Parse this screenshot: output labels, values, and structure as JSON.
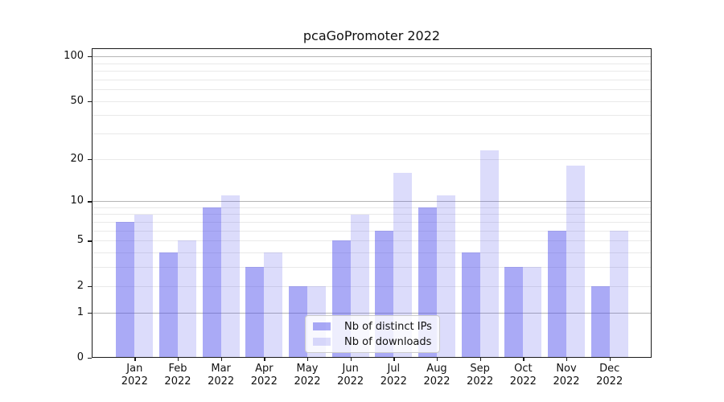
{
  "title": "pcaGoPromoter 2022",
  "chart_data": {
    "type": "bar",
    "title": "pcaGoPromoter 2022",
    "categories": [
      {
        "month": "Jan",
        "year": "2022"
      },
      {
        "month": "Feb",
        "year": "2022"
      },
      {
        "month": "Mar",
        "year": "2022"
      },
      {
        "month": "Apr",
        "year": "2022"
      },
      {
        "month": "May",
        "year": "2022"
      },
      {
        "month": "Jun",
        "year": "2022"
      },
      {
        "month": "Jul",
        "year": "2022"
      },
      {
        "month": "Aug",
        "year": "2022"
      },
      {
        "month": "Sep",
        "year": "2022"
      },
      {
        "month": "Oct",
        "year": "2022"
      },
      {
        "month": "Nov",
        "year": "2022"
      },
      {
        "month": "Dec",
        "year": "2022"
      }
    ],
    "series": [
      {
        "name": "Nb of distinct IPs",
        "color": "#aaaaf5",
        "color_rgba": "rgba(70,70,235,0.46)",
        "values": [
          7,
          4,
          9,
          3,
          2,
          5,
          6,
          9,
          4,
          3,
          6,
          2
        ]
      },
      {
        "name": "Nb of downloads",
        "color": "#dcdcfa",
        "color_rgba": "rgba(70,70,235,0.19)",
        "values": [
          8,
          5,
          11,
          4,
          2,
          8,
          16,
          11,
          23,
          3,
          18,
          6
        ]
      }
    ],
    "xlabel": "",
    "ylabel": "",
    "yscale": "log1p",
    "yticks": [
      0,
      1,
      2,
      5,
      10,
      20,
      50,
      100
    ],
    "ylim": [
      0,
      113.3
    ],
    "grid": {
      "major_at": [
        1,
        10,
        100
      ],
      "major_color": "#b5b5b5",
      "minor_color": "#e9e9e9"
    },
    "legend_position": "inside-bottom-center"
  }
}
